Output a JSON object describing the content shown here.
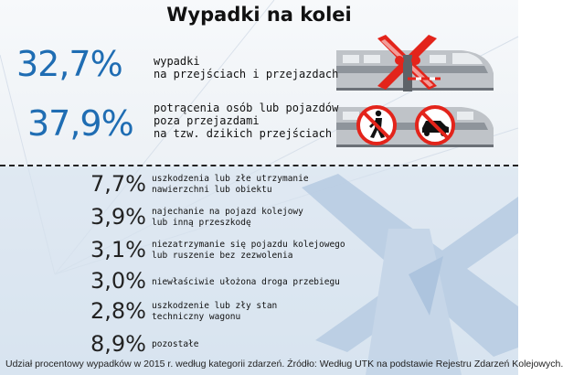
{
  "title": "Wypadki na kolei",
  "colors": {
    "accent": "#1f6db3",
    "train": "#b8bcc2",
    "cross_red": "#e3241b",
    "bg_blue": "#c9d8ea"
  },
  "icons": [
    "train-icon",
    "railroad-crossing-icon",
    "pedestrian-forbidden-icon",
    "car-forbidden-icon",
    "crossing-sign-background-icon"
  ],
  "chart_data": {
    "type": "table",
    "title": "Wypadki na kolei",
    "unit": "%",
    "categories": [
      "wypadki\nna przejściach i przejazdach",
      "potrącenia osób lub pojazdów\npoza przejazdami\nna tzw. dzikich przejściach",
      "uszkodzenia lub złe utrzymanie\nnawierzchni lub obiektu",
      "najechanie na pojazd kolejowy\nlub inną przeszkodę",
      "niezatrzymanie się pojazdu kolejowego\nlub ruszenie bez zezwolenia",
      "niewłaściwie ułożona droga przebiegu",
      "uszkodzenie lub zły stan\ntechniczny wagonu",
      "pozostałe"
    ],
    "values": [
      32.7,
      37.9,
      7.7,
      3.9,
      3.1,
      3.0,
      2.8,
      8.9
    ],
    "value_labels": [
      "32,7%",
      "37,9%",
      "7,7%",
      "3,9%",
      "3,1%",
      "3,0%",
      "2,8%",
      "8,9%"
    ]
  },
  "source": "Udział procentowy wypadków w 2015 r. według kategorii zdarzeń. Źródło: Według UTK na podstawie Rejestru Zdarzeń Kolejowych."
}
